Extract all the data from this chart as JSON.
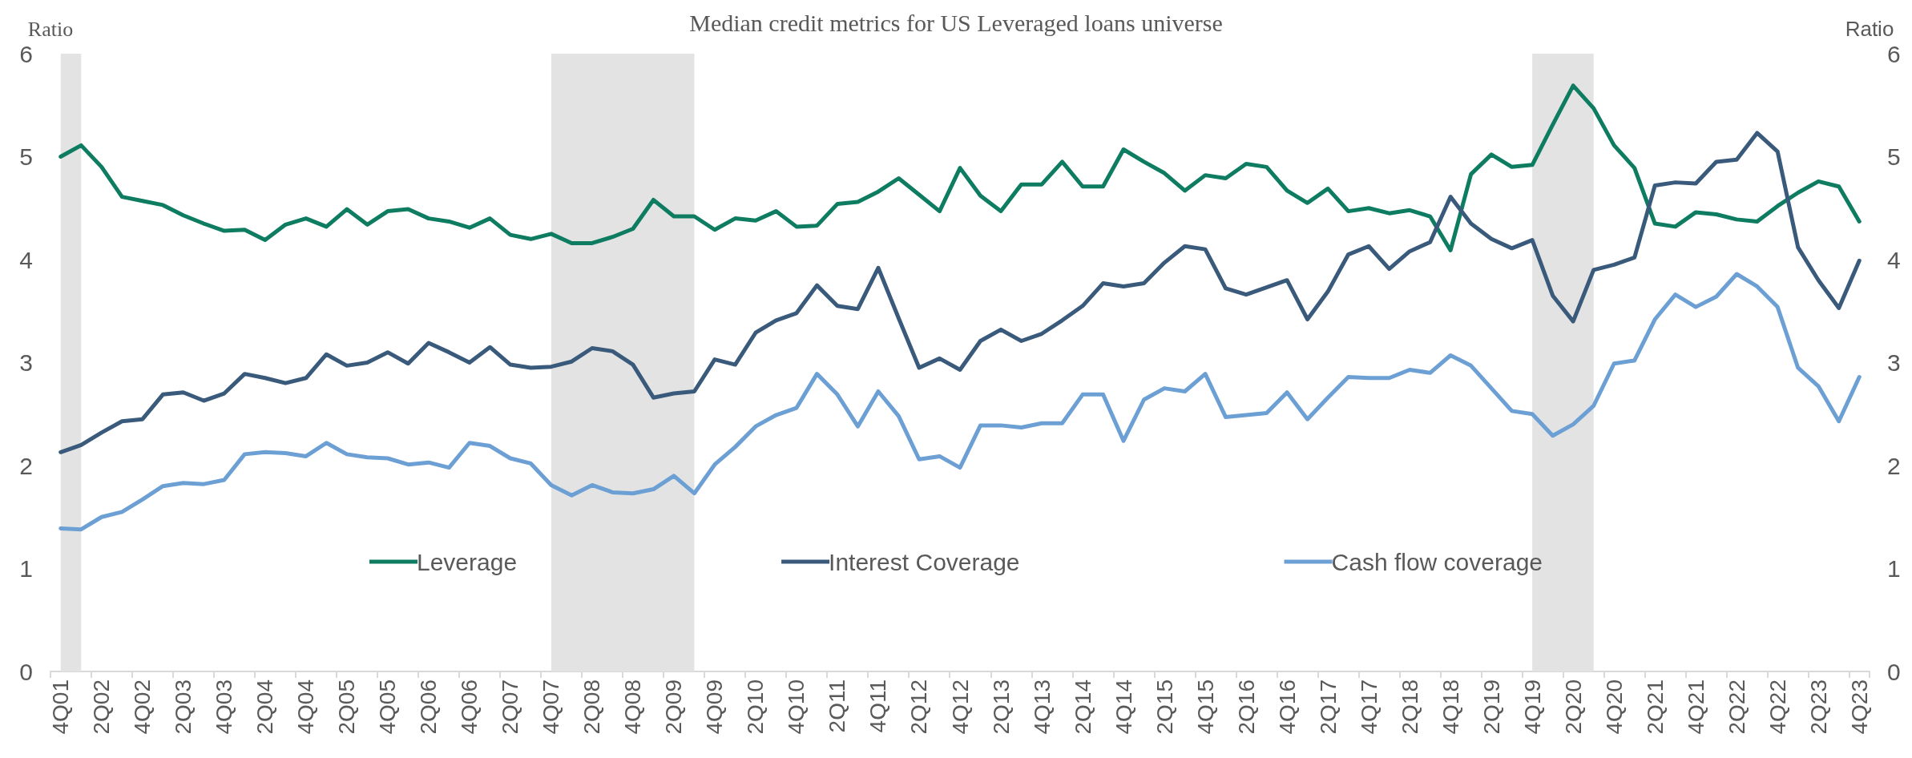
{
  "chart_data": {
    "type": "line",
    "title": "Median credit metrics for US Leveraged loans universe",
    "ylabel": "Ratio",
    "y2label": "Ratio",
    "categories": [
      "4Q01",
      null,
      "2Q02",
      null,
      "4Q02",
      null,
      "2Q03",
      null,
      "4Q03",
      null,
      "2Q04",
      null,
      "4Q04",
      null,
      "2Q05",
      null,
      "4Q05",
      null,
      "2Q06",
      null,
      "4Q06",
      null,
      "2Q07",
      null,
      "4Q07",
      null,
      "2Q08",
      null,
      "4Q08",
      null,
      "2Q09",
      null,
      "4Q09",
      null,
      "2Q10",
      null,
      "4Q10",
      null,
      "2Q11",
      null,
      "4Q11",
      null,
      "2Q12",
      null,
      "4Q12",
      null,
      "2Q13",
      null,
      "4Q13",
      null,
      "2Q14",
      null,
      "4Q14",
      null,
      "2Q15",
      null,
      "4Q15",
      null,
      "2Q16",
      null,
      "4Q16",
      null,
      "2Q17",
      null,
      "4Q17",
      null,
      "2Q18",
      null,
      "4Q18",
      null,
      "2Q19",
      null,
      "4Q19",
      null,
      "2Q20",
      null,
      "4Q20",
      null,
      "2Q21",
      null,
      "4Q21",
      null,
      "2Q22",
      null,
      "4Q22",
      null,
      "2Q23",
      null,
      "4Q23"
    ],
    "series": [
      {
        "name": "Leverage",
        "color": "#0e7c61",
        "values": [
          5.0,
          5.11,
          4.9,
          4.61,
          4.57,
          4.53,
          4.43,
          4.35,
          4.28,
          4.29,
          4.19,
          4.34,
          4.4,
          4.32,
          4.49,
          4.34,
          4.47,
          4.49,
          4.4,
          4.37,
          4.31,
          4.4,
          4.24,
          4.2,
          4.25,
          4.16,
          4.16,
          4.22,
          4.3,
          4.58,
          4.42,
          4.42,
          4.29,
          4.4,
          4.38,
          4.47,
          4.32,
          4.33,
          4.54,
          4.56,
          4.66,
          4.79,
          4.63,
          4.47,
          4.89,
          4.62,
          4.47,
          4.73,
          4.73,
          4.95,
          4.71,
          4.71,
          5.07,
          4.95,
          4.84,
          4.67,
          4.82,
          4.79,
          4.93,
          4.9,
          4.67,
          4.55,
          4.69,
          4.47,
          4.5,
          4.45,
          4.48,
          4.42,
          4.09,
          4.83,
          5.02,
          4.9,
          4.92,
          5.31,
          5.69,
          5.47,
          5.11,
          4.89,
          4.35,
          4.32,
          4.46,
          4.44,
          4.39,
          4.37,
          4.52,
          4.65,
          4.76,
          4.71,
          4.37
        ]
      },
      {
        "name": "Interest Coverage",
        "color": "#3a5a7c",
        "values": [
          2.13,
          2.2,
          2.32,
          2.43,
          2.45,
          2.69,
          2.71,
          2.63,
          2.7,
          2.89,
          2.85,
          2.8,
          2.85,
          3.08,
          2.97,
          3.0,
          3.1,
          2.99,
          3.19,
          3.1,
          3.0,
          3.15,
          2.98,
          2.95,
          2.96,
          3.01,
          3.14,
          3.11,
          2.98,
          2.66,
          2.7,
          2.72,
          3.03,
          2.98,
          3.29,
          3.41,
          3.48,
          3.75,
          3.55,
          3.52,
          3.92,
          3.43,
          2.95,
          3.04,
          2.93,
          3.21,
          3.32,
          3.21,
          3.28,
          3.41,
          3.55,
          3.77,
          3.74,
          3.77,
          3.97,
          4.13,
          4.1,
          3.72,
          3.66,
          3.73,
          3.8,
          3.42,
          3.69,
          4.05,
          4.13,
          3.91,
          4.08,
          4.17,
          4.61,
          4.35,
          4.2,
          4.11,
          4.19,
          3.65,
          3.4,
          3.9,
          3.95,
          4.02,
          4.72,
          4.75,
          4.74,
          4.95,
          4.97,
          5.23,
          5.05,
          4.12,
          3.8,
          3.53,
          3.99
        ]
      },
      {
        "name": "Cash flow coverage",
        "color": "#6ca0d4",
        "values": [
          1.39,
          1.38,
          1.5,
          1.55,
          1.67,
          1.8,
          1.83,
          1.82,
          1.86,
          2.11,
          2.13,
          2.12,
          2.09,
          2.22,
          2.11,
          2.08,
          2.07,
          2.01,
          2.03,
          1.98,
          2.22,
          2.19,
          2.07,
          2.02,
          1.81,
          1.71,
          1.81,
          1.74,
          1.73,
          1.77,
          1.9,
          1.73,
          2.01,
          2.18,
          2.38,
          2.49,
          2.56,
          2.89,
          2.69,
          2.38,
          2.72,
          2.48,
          2.06,
          2.09,
          1.98,
          2.39,
          2.39,
          2.37,
          2.41,
          2.41,
          2.69,
          2.69,
          2.24,
          2.64,
          2.75,
          2.72,
          2.89,
          2.47,
          2.49,
          2.51,
          2.71,
          2.45,
          2.66,
          2.86,
          2.85,
          2.85,
          2.93,
          2.9,
          3.07,
          2.97,
          2.75,
          2.53,
          2.5,
          2.29,
          2.4,
          2.58,
          2.99,
          3.02,
          3.42,
          3.66,
          3.54,
          3.64,
          3.86,
          3.74,
          3.54,
          2.95,
          2.77,
          2.43,
          2.86
        ]
      }
    ],
    "ylim": [
      0,
      6
    ],
    "yticks": [
      0,
      1,
      2,
      3,
      4,
      5,
      6
    ],
    "y2lim": [
      0,
      6
    ],
    "y2ticks": [
      0,
      1,
      2,
      3,
      4,
      5,
      6
    ],
    "bands": [
      {
        "axis": "x",
        "from": "4Q01",
        "to": "4Q01",
        "color": "#e3e3e3"
      },
      {
        "axis": "x",
        "from": "4Q07",
        "to": "2Q09",
        "color": "#e3e3e3"
      },
      {
        "axis": "x",
        "from": "4Q19",
        "to": "2Q20",
        "color": "#e3e3e3"
      }
    ],
    "grid": false,
    "legend": "bottom",
    "marker": "none",
    "line_style": "solid"
  }
}
